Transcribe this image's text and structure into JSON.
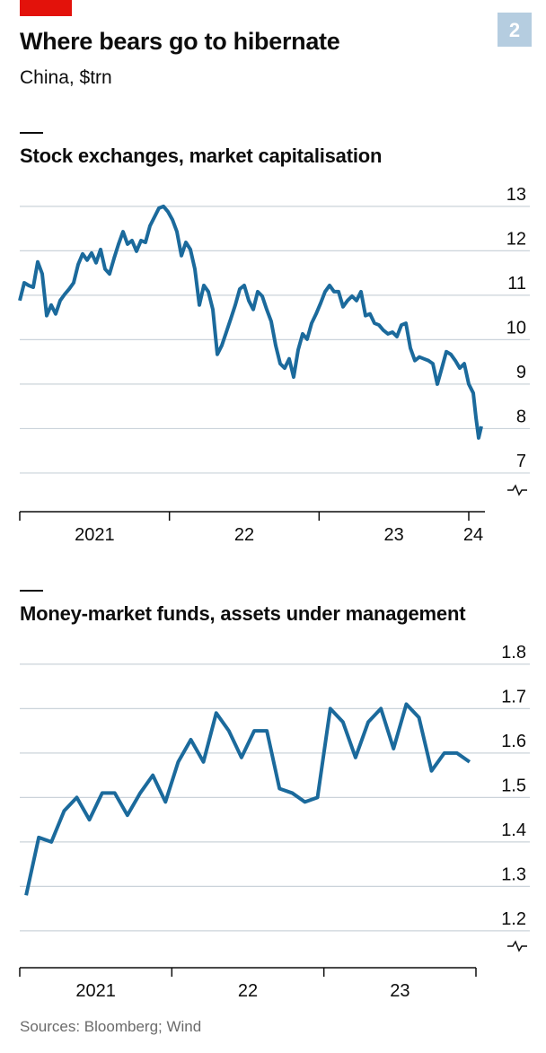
{
  "title": "Where bears go to hibernate",
  "subtitle": "China, $trn",
  "figure_number": "2",
  "source": "Sources: Bloomberg; Wind",
  "chart_data": [
    {
      "type": "line",
      "title": "Stock exchanges, market capitalisation",
      "color": "#1b6a9c",
      "x": [
        2021,
        2021.03,
        2021.06,
        2021.09,
        2021.12,
        2021.15,
        2021.18,
        2021.21,
        2021.24,
        2021.27,
        2021.3,
        2021.33,
        2021.36,
        2021.39,
        2021.42,
        2021.45,
        2021.48,
        2021.51,
        2021.54,
        2021.57,
        2021.6,
        2021.63,
        2021.66,
        2021.69,
        2021.72,
        2021.75,
        2021.78,
        2021.81,
        2021.84,
        2021.87,
        2021.9,
        2021.93,
        2021.96,
        2021.99,
        2022.02,
        2022.05,
        2022.08,
        2022.11,
        2022.14,
        2022.17,
        2022.2,
        2022.23,
        2022.26,
        2022.29,
        2022.32,
        2022.35,
        2022.38,
        2022.41,
        2022.44,
        2022.47,
        2022.5,
        2022.53,
        2022.56,
        2022.59,
        2022.62,
        2022.65,
        2022.68,
        2022.71,
        2022.74,
        2022.77,
        2022.8,
        2022.83,
        2022.86,
        2022.89,
        2022.92,
        2022.95,
        2022.98,
        2023.01,
        2023.04,
        2023.07,
        2023.1,
        2023.13,
        2023.16,
        2023.19,
        2023.22,
        2023.25,
        2023.28,
        2023.31,
        2023.34,
        2023.37,
        2023.4,
        2023.43,
        2023.46,
        2023.49,
        2023.52,
        2023.55,
        2023.58,
        2023.61,
        2023.64,
        2023.67,
        2023.7,
        2023.73,
        2023.76,
        2023.79,
        2023.82,
        2023.85,
        2023.88,
        2023.91,
        2023.94,
        2023.97,
        2024,
        2024.03,
        2024.048,
        2024.066,
        2024.084
      ],
      "values": [
        10.88,
        11.28,
        11.22,
        11.18,
        11.75,
        11.48,
        10.54,
        10.78,
        10.58,
        10.88,
        11.02,
        11.14,
        11.28,
        11.69,
        11.93,
        11.79,
        11.95,
        11.73,
        12.03,
        11.59,
        11.48,
        11.83,
        12.15,
        12.43,
        12.15,
        12.23,
        11.99,
        12.23,
        12.19,
        12.56,
        12.76,
        12.96,
        13.0,
        12.88,
        12.7,
        12.43,
        11.89,
        12.19,
        12.03,
        11.59,
        10.78,
        11.22,
        11.08,
        10.68,
        9.67,
        9.87,
        10.17,
        10.47,
        10.78,
        11.14,
        11.22,
        10.88,
        10.68,
        11.08,
        10.98,
        10.68,
        10.41,
        9.87,
        9.46,
        9.36,
        9.57,
        9.16,
        9.77,
        10.13,
        10.01,
        10.37,
        10.58,
        10.82,
        11.08,
        11.22,
        11.08,
        11.08,
        10.74,
        10.88,
        10.98,
        10.88,
        11.08,
        10.54,
        10.58,
        10.37,
        10.33,
        10.21,
        10.13,
        10.17,
        10.07,
        10.33,
        10.37,
        9.81,
        9.53,
        9.61,
        9.57,
        9.53,
        9.46,
        9.0,
        9.36,
        9.73,
        9.67,
        9.53,
        9.36,
        9.46,
        9.0,
        8.8,
        8.25,
        7.79,
        8.05
      ],
      "xlim": [
        2021,
        2024.108
      ],
      "ylim": [
        6.13,
        13.3
      ],
      "xticks": [
        {
          "value": 2021.5,
          "label": "2021"
        },
        {
          "value": 2022.5,
          "label": "22"
        },
        {
          "value": 2023.5,
          "label": "23"
        },
        {
          "value": 2024.03,
          "label": "24"
        }
      ],
      "xtick_marks": [
        2021,
        2022,
        2023,
        2024
      ],
      "yticks": [
        7,
        8,
        9,
        10,
        11,
        12,
        13
      ],
      "grid": true
    },
    {
      "type": "line",
      "title": "Money-market funds, assets under management",
      "color": "#1b6a9c",
      "x": [
        2021.042,
        2021.125,
        2021.208,
        2021.292,
        2021.375,
        2021.458,
        2021.542,
        2021.625,
        2021.708,
        2021.792,
        2021.875,
        2021.958,
        2022.042,
        2022.125,
        2022.208,
        2022.292,
        2022.375,
        2022.458,
        2022.542,
        2022.625,
        2022.708,
        2022.792,
        2022.875,
        2022.958,
        2023.042,
        2023.125,
        2023.208,
        2023.292,
        2023.375,
        2023.458,
        2023.542,
        2023.625,
        2023.708,
        2023.792,
        2023.875,
        2023.958
      ],
      "values": [
        1.28,
        1.41,
        1.4,
        1.47,
        1.5,
        1.45,
        1.51,
        1.51,
        1.46,
        1.51,
        1.55,
        1.49,
        1.58,
        1.63,
        1.58,
        1.69,
        1.65,
        1.59,
        1.65,
        1.65,
        1.52,
        1.51,
        1.49,
        1.5,
        1.7,
        1.67,
        1.59,
        1.67,
        1.7,
        1.61,
        1.71,
        1.68,
        1.56,
        1.6,
        1.6,
        1.58
      ],
      "xlim": [
        2021,
        2024
      ],
      "ylim": [
        1.117,
        1.83
      ],
      "xticks": [
        {
          "value": 2021.5,
          "label": "2021"
        },
        {
          "value": 2022.5,
          "label": "22"
        },
        {
          "value": 2023.5,
          "label": "23"
        }
      ],
      "xtick_marks": [
        2021,
        2022,
        2023,
        2024
      ],
      "yticks": [
        1.2,
        1.3,
        1.4,
        1.5,
        1.6,
        1.7,
        1.8
      ],
      "grid": true
    }
  ]
}
